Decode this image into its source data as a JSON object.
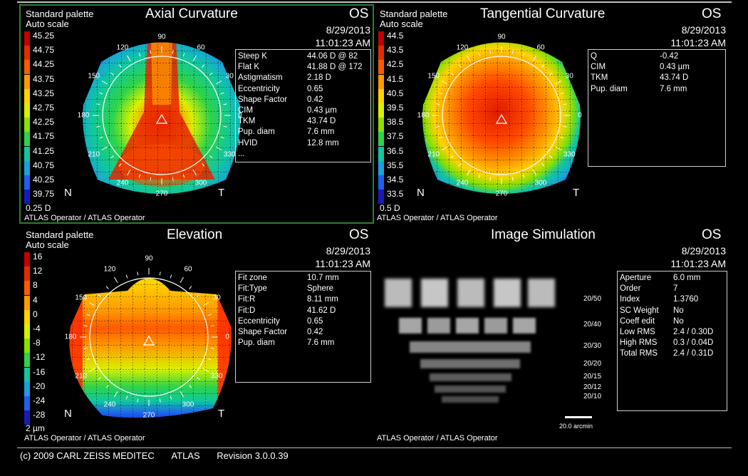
{
  "footer": {
    "copyright": "(c) 2009 CARL ZEISS MEDITEC",
    "app": "ATLAS",
    "revision": "Revision  3.0.0.39"
  },
  "common": {
    "eye": "OS",
    "date": "8/29/2013",
    "time": "11:01:23 AM",
    "operator": "ATLAS Operator / ATLAS Operator",
    "palette": "Standard palette",
    "scale": "Auto scale",
    "nasal": "N",
    "temporal": "T"
  },
  "axial": {
    "title": "Axial Curvature",
    "legend": [
      "45.25",
      "44.75",
      "44.25",
      "43.75",
      "43.25",
      "42.75",
      "42.25",
      "41.75",
      "41.25",
      "40.75",
      "40.25",
      "39.75"
    ],
    "step": "0.25 D",
    "info": [
      {
        "k": "Steep K",
        "v": "44.06 D @ 82"
      },
      {
        "k": "Flat K",
        "v": "41.88 D @ 172"
      },
      {
        "k": "Astigmatism",
        "v": "2.18 D"
      },
      {
        "k": "Eccentricity",
        "v": "0.65"
      },
      {
        "k": "Shape Factor",
        "v": "0.42"
      },
      {
        "k": "CIM",
        "v": "0.43 µm"
      },
      {
        "k": "TKM",
        "v": "43.74 D"
      },
      {
        "k": "Pup. diam",
        "v": "7.6 mm"
      },
      {
        "k": "HVID",
        "v": "12.8 mm"
      },
      {
        "k": "...",
        "v": ""
      }
    ]
  },
  "tangential": {
    "title": "Tangential Curvature",
    "legend": [
      "44.5",
      "43.5",
      "42.5",
      "41.5",
      "40.5",
      "39.5",
      "38.5",
      "37.5",
      "36.5",
      "35.5",
      "34.5",
      "33.5"
    ],
    "step": "0.5 D",
    "info": [
      {
        "k": "Q",
        "v": "-0.42"
      },
      {
        "k": "CIM",
        "v": "0.43 µm"
      },
      {
        "k": "TKM",
        "v": "43.74 D"
      },
      {
        "k": "Pup. diam",
        "v": "7.6 mm"
      }
    ]
  },
  "elevation": {
    "title": "Elevation",
    "legend": [
      "16",
      "12",
      "8",
      "4",
      "0",
      "-4",
      "-8",
      "-12",
      "-16",
      "-20",
      "-24",
      "-28"
    ],
    "step": "2 µm",
    "info": [
      {
        "k": "Fit zone",
        "v": "10.7 mm"
      },
      {
        "k": "Fit:Type",
        "v": "Sphere"
      },
      {
        "k": "Fit:R",
        "v": "8.11 mm"
      },
      {
        "k": "Fit:D",
        "v": "41.62 D"
      },
      {
        "k": "Eccentricity",
        "v": "0.65"
      },
      {
        "k": "Shape Factor",
        "v": "0.42"
      },
      {
        "k": "Pup. diam",
        "v": "7.6 mm"
      }
    ]
  },
  "simulation": {
    "title": "Image Simulation",
    "acuity": [
      "20/50",
      "20/40",
      "20/30",
      "20/20",
      "20/15",
      "20/12",
      "20/10"
    ],
    "scale_bar": "20.0 arcmin",
    "info": [
      {
        "k": "Aperture",
        "v": "6.0 mm"
      },
      {
        "k": "Order",
        "v": "7"
      },
      {
        "k": "Index",
        "v": "1.3760"
      },
      {
        "k": "SC Weight",
        "v": "No"
      },
      {
        "k": "Coeff edit",
        "v": "No"
      },
      {
        "k": "Low RMS",
        "v": "2.4 / 0.30D"
      },
      {
        "k": "High RMS",
        "v": "0.3 / 0.04D"
      },
      {
        "k": "Total RMS",
        "v": "2.4 / 0.31D"
      }
    ]
  },
  "angles": [
    "90",
    "60",
    "30",
    "0",
    "330",
    "300",
    "270",
    "240",
    "210",
    "180",
    "150",
    "120"
  ],
  "colors": {
    "legend": [
      "#c40000",
      "#e52a00",
      "#ff5a00",
      "#ff9a00",
      "#ffd200",
      "#d8f000",
      "#8ae000",
      "#2ed34a",
      "#10c7a0",
      "#1aa0e0",
      "#1e5ff0",
      "#1a1ab8"
    ]
  }
}
